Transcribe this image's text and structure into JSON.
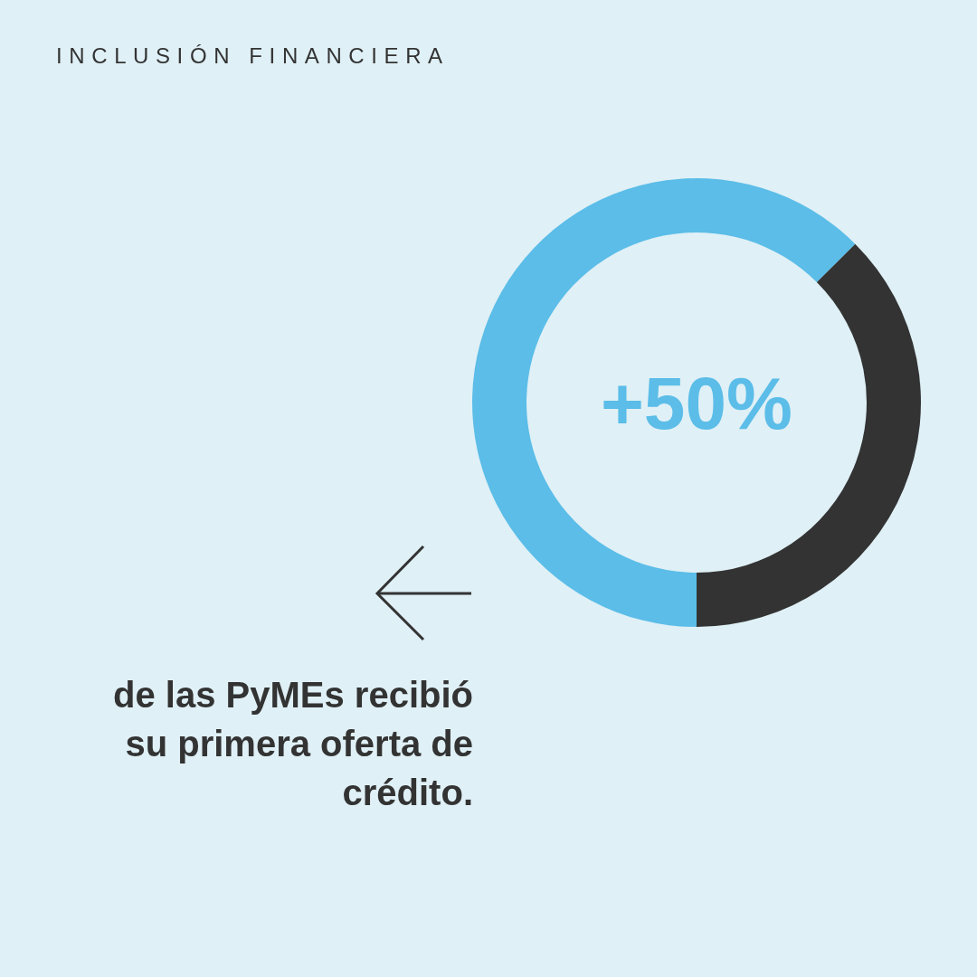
{
  "chart_data": {
    "type": "donut",
    "title": "INCLUSIÓN FINANCIERA",
    "categories": [
      null,
      null
    ],
    "values": [
      62.5,
      37.5
    ],
    "colors": [
      "#5bbde8",
      "#333333"
    ],
    "annotations": [
      "+50%",
      "de las PyMEs recibió su primera oferta de crédito."
    ]
  }
}
